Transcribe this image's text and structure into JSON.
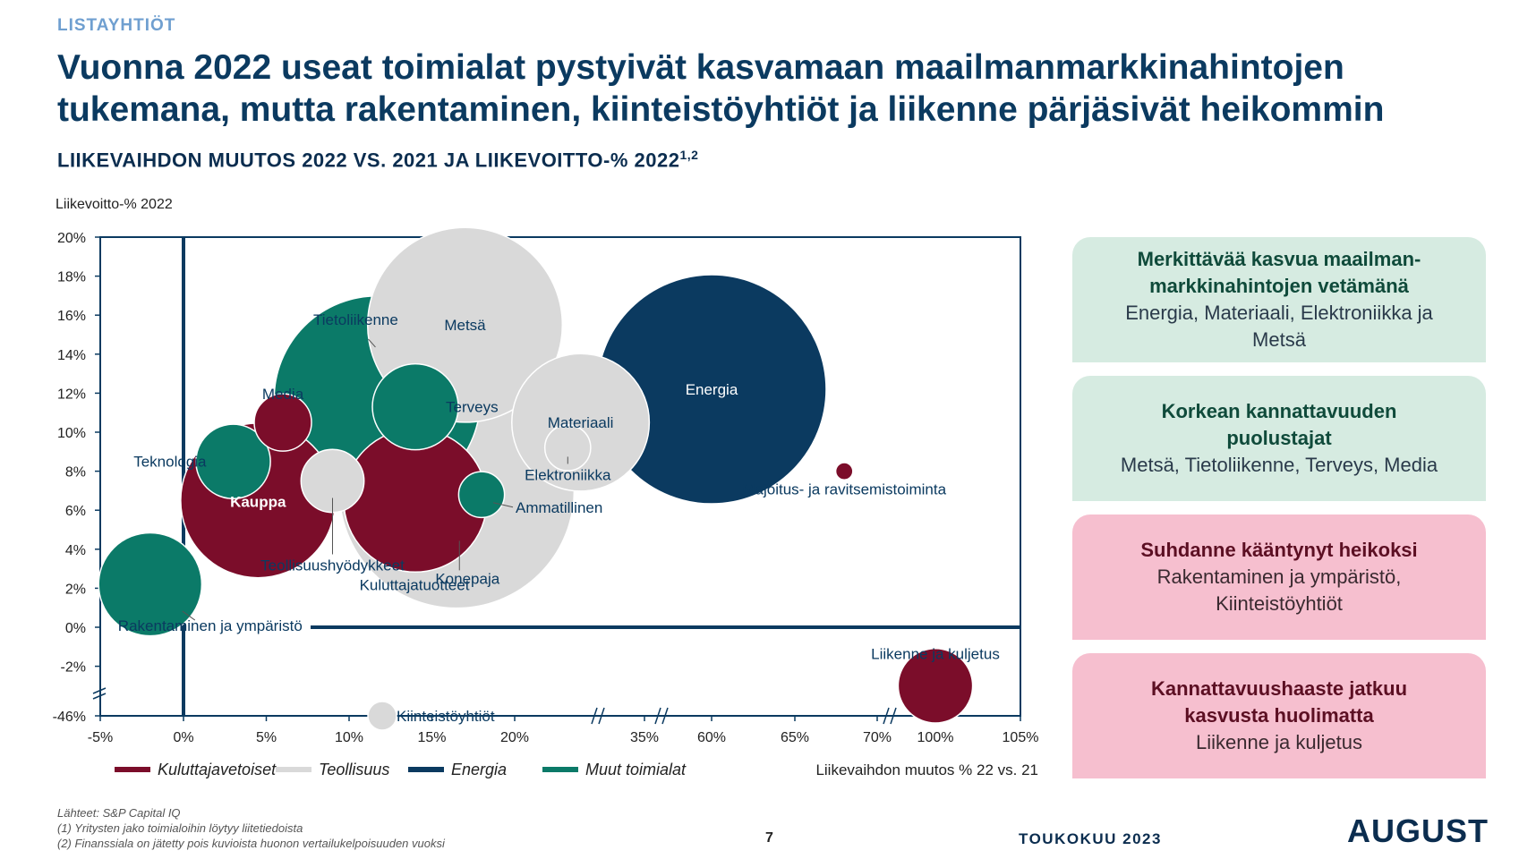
{
  "header": {
    "kicker": "LISTAYHTIÖT",
    "title_line1": "Vuonna 2022 useat toimialat pystyivät kasvamaan maailmanmarkkinahintojen",
    "title_line2": "tukemana, mutta rakentaminen, kiinteistöyhtiöt ja liikenne pärjäsivät heikommin",
    "subtitle": "LIIKEVAIHDON MUUTOS 2022 VS. 2021 JA LIIKEVOITTO-% 2022",
    "subtitle_sup": "1,2"
  },
  "colors": {
    "kuluttajavetoiset": "#7b0d2a",
    "teollisuus": "#d9d9d9",
    "energia": "#0b3a60",
    "muut": "#0b7a68",
    "axis": "#0b3a60"
  },
  "chart_data": {
    "type": "scatter",
    "ylabel": "Liikevoitto-% 2022",
    "xlabel": "Liikevaihdon muutos % 22 vs. 21",
    "x_ticks": [
      "-5%",
      "0%",
      "5%",
      "10%",
      "15%",
      "20%",
      "35%",
      "60%",
      "65%",
      "70%",
      "100%",
      "105%"
    ],
    "y_ticks": [
      "20%",
      "18%",
      "16%",
      "14%",
      "12%",
      "10%",
      "8%",
      "6%",
      "4%",
      "2%",
      "0%",
      "-2%",
      "-46%"
    ],
    "legend": [
      {
        "key": "kuluttajavetoiset",
        "label": "Kuluttajavetoiset"
      },
      {
        "key": "teollisuus",
        "label": "Teollisuus"
      },
      {
        "key": "energia",
        "label": "Energia"
      },
      {
        "key": "muut",
        "label": "Muut toimialat"
      }
    ],
    "series": [
      {
        "label": "Metsä",
        "x": 17,
        "y": 15.5,
        "group": "teollisuus",
        "size": 3.4
      },
      {
        "label": "Konepaja",
        "x": 16.5,
        "y": 7,
        "group": "teollisuus",
        "size": 4.1
      },
      {
        "label": "Materiaali",
        "x": 30,
        "y": 10.5,
        "group": "teollisuus",
        "size": 2.4
      },
      {
        "label": "Elektroniikka",
        "x": 29,
        "y": 9.2,
        "group": "teollisuus",
        "size": 0.8
      },
      {
        "label": "Teollisuushyödykkeet",
        "x": 9,
        "y": 7.5,
        "group": "teollisuus",
        "size": 1.1
      },
      {
        "label": "Kiinteistöyhtiöt",
        "x": 12,
        "y": -46,
        "group": "teollisuus",
        "size": 0.5
      },
      {
        "label": "Tietoliikenne",
        "x": 11.7,
        "y": 11.7,
        "group": "muut",
        "size": 3.6
      },
      {
        "label": "Terveys",
        "x": 14,
        "y": 11.3,
        "group": "muut",
        "size": 1.5
      },
      {
        "label": "Teknologia",
        "x": 3,
        "y": 8.5,
        "group": "muut",
        "size": 1.3
      },
      {
        "label": "Ammatillinen",
        "x": 18,
        "y": 6.8,
        "group": "muut",
        "size": 0.8
      },
      {
        "label": "Rakentaminen ja ympäristö",
        "x": -2,
        "y": 2.2,
        "group": "muut",
        "size": 1.8
      },
      {
        "label": "Media",
        "x": 6,
        "y": 10.5,
        "group": "kuluttajavetoiset",
        "size": 1
      },
      {
        "label": "Kauppa",
        "x": 4.5,
        "y": 6.5,
        "group": "kuluttajavetoiset",
        "size": 2.7
      },
      {
        "label": "Kuluttajatuotteet",
        "x": 14,
        "y": 6.5,
        "group": "kuluttajavetoiset",
        "size": 2.5
      },
      {
        "label": "Majoitus- ja ravitsemistoiminta",
        "x": 68,
        "y": 8,
        "group": "kuluttajavetoiset",
        "size": 0.3
      },
      {
        "label": "Energia",
        "x": 60,
        "y": 12.2,
        "group": "energia",
        "size": 4
      },
      {
        "label": "Liikenne ja kuljetus",
        "x": 100,
        "y": -3,
        "group": "kuluttajavetoiset",
        "size": 1.3
      }
    ]
  },
  "cards": [
    {
      "title": "Merkittävää kasvua maailman-\nmarkkinahintojen vetämänä",
      "body": "Energia, Materiaali, Elektroniikka ja\nMetsä",
      "style": "green"
    },
    {
      "title": "Korkean kannattavuuden\npuolustajat",
      "body": "Metsä, Tietoliikenne, Terveys, Media",
      "style": "green"
    },
    {
      "title": "Suhdanne kääntynyt heikoksi",
      "body": "Rakentaminen ja ympäristö,\nKiinteistöyhtiöt",
      "style": "pink"
    },
    {
      "title": "Kannattavuushaaste jatkuu\nkasvusta huolimatta",
      "body": "Liikenne ja kuljetus",
      "style": "pink"
    }
  ],
  "footer": {
    "source": "Lähteet: S&P Capital IQ",
    "note1": "(1)   Yritysten jako toimialoihin löytyy liitetiedoista",
    "note2": "(2)   Finanssiala on jätetty pois kuvioista huonon vertailukelpoisuuden vuoksi",
    "page": "7",
    "date": "TOUKOKUU 2023",
    "logo": "AUGUST"
  }
}
